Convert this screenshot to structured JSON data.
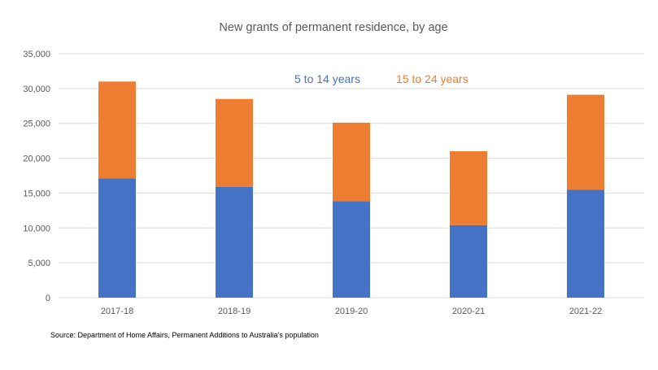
{
  "chart_data": {
    "type": "bar",
    "stacked": true,
    "title": "New grants of permanent residence, by age",
    "xlabel": "",
    "ylabel": "",
    "categories": [
      "2017-18",
      "2018-19",
      "2019-20",
      "2020-21",
      "2021-22"
    ],
    "series": [
      {
        "name": "5 to 14 years",
        "color": "#4472C4",
        "values": [
          17100,
          15900,
          13850,
          10400,
          15500
        ]
      },
      {
        "name": "15 to 24 years",
        "color": "#ED7D31",
        "values": [
          13900,
          12600,
          11250,
          10600,
          13600
        ]
      }
    ],
    "ylim": [
      0,
      35000
    ],
    "yticks": [
      0,
      5000,
      10000,
      15000,
      20000,
      25000,
      30000,
      35000
    ],
    "ytick_labels": [
      "0",
      "5,000",
      "10,000",
      "15,000",
      "20,000",
      "25,000",
      "30,000",
      "35,000"
    ],
    "grid": true,
    "legend_position": "top-center"
  },
  "source": "Source: Department of Home Affairs, Permanent Additions to Australia’s population"
}
